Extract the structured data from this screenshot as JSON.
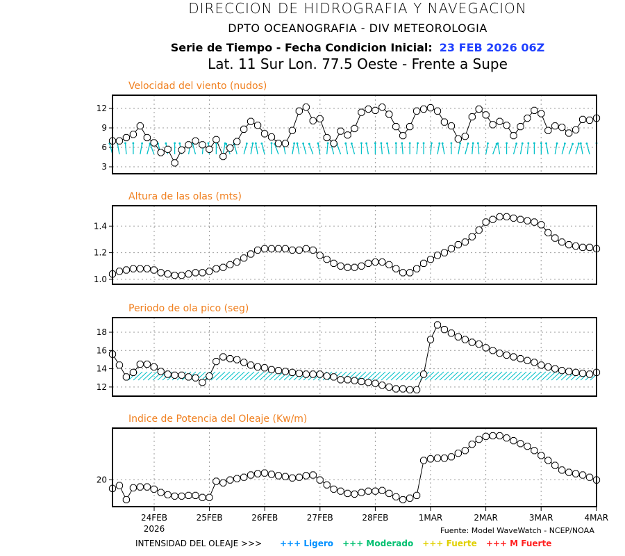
{
  "header": {
    "line1": "DIRECCION DE HIDROGRAFIA Y NAVEGACION",
    "line2": "DPTO OCEANOGRAFIA - DIV METEOROLOGIA",
    "line3_label": "Serie de Tiempo - Fecha Condicion Inicial:",
    "line3_date": "23 FEB 2026 06Z",
    "line4": "Lat. 11 Sur  Lon. 77.5 Oeste - Frente a Supe"
  },
  "colors": {
    "title": "#f08020",
    "date": "#2040ff",
    "arrows": "#00c0c8",
    "ligero": "#0090ff",
    "moderado": "#00c070",
    "fuerte": "#e0d000",
    "mfuerte": "#ff2020"
  },
  "footer": {
    "source": "Fuente: Model WaveWatch - NCEP/NOAA",
    "intensity_label": "INTENSIDAD DEL OLEAJE >>>",
    "legend": [
      {
        "label": "+++ Ligero",
        "color": "#0090ff"
      },
      {
        "label": "+++ Moderado",
        "color": "#00c070"
      },
      {
        "label": "+++ Fuerte",
        "color": "#e0d000"
      },
      {
        "label": "+++ M Fuerte",
        "color": "#ff2020"
      }
    ]
  },
  "chart_data": [
    {
      "type": "line",
      "title": "Velocidad del viento (nudos)",
      "ylim": [
        1.93,
        14.04
      ],
      "yticks": [
        3,
        6,
        9,
        12
      ],
      "x_start": "23FEB 06Z",
      "x_step_hours": 3,
      "xticks": [
        "24FEB",
        "25FEB",
        "26FEB",
        "27FEB",
        "28FEB",
        "1MAR",
        "2MAR",
        "3MAR",
        "4MAR"
      ],
      "xtick_sub": "2026",
      "values": [
        7.0,
        7.0,
        7.5,
        8.0,
        9.3,
        7.5,
        6.7,
        5.2,
        5.7,
        3.6,
        5.6,
        6.4,
        7.0,
        6.4,
        5.7,
        7.2,
        4.6,
        5.9,
        6.9,
        8.8,
        10.0,
        9.4,
        8.1,
        7.6,
        6.6,
        6.6,
        8.6,
        11.6,
        12.2,
        10.1,
        10.4,
        7.5,
        6.6,
        8.5,
        7.9,
        8.9,
        11.4,
        11.9,
        11.7,
        12.2,
        11.1,
        9.2,
        7.8,
        9.2,
        11.6,
        11.9,
        12.1,
        11.6,
        9.9,
        9.3,
        7.3,
        7.7,
        10.7,
        11.9,
        11.0,
        9.5,
        10.0,
        9.4,
        7.8,
        9.2,
        10.5,
        11.7,
        11.2,
        8.6,
        9.3,
        9.1,
        8.2,
        8.7,
        10.3,
        10.2,
        10.5
      ],
      "wind_arrow_tilt_deg": [
        -15,
        -10,
        -5,
        0,
        10,
        15,
        -20,
        -15,
        -10,
        0,
        -10,
        10,
        -15,
        5,
        -5,
        0,
        10,
        -20,
        -15,
        15,
        10,
        -10,
        -15,
        0,
        -20,
        -10,
        10,
        -10,
        -15,
        -20,
        -10,
        5,
        -15,
        -20,
        -10,
        -15,
        0,
        -10,
        0,
        -5,
        -10,
        0,
        -5,
        0,
        5,
        0,
        5,
        10,
        -10,
        0,
        10,
        15,
        5,
        -5,
        10,
        20,
        -10,
        0,
        15,
        10,
        5,
        0,
        0,
        -10,
        10,
        15,
        20,
        15,
        -10,
        -15,
        0
      ],
      "gridlines": true
    },
    {
      "type": "line",
      "title": "Altura de las olas (mts)",
      "ylim": [
        0.963,
        1.553
      ],
      "yticks": [
        1.0,
        1.2,
        1.4
      ],
      "values": [
        1.04,
        1.06,
        1.07,
        1.08,
        1.08,
        1.08,
        1.07,
        1.05,
        1.04,
        1.03,
        1.03,
        1.04,
        1.05,
        1.05,
        1.06,
        1.08,
        1.09,
        1.11,
        1.13,
        1.16,
        1.19,
        1.22,
        1.23,
        1.23,
        1.23,
        1.23,
        1.22,
        1.22,
        1.23,
        1.22,
        1.18,
        1.15,
        1.12,
        1.1,
        1.09,
        1.09,
        1.1,
        1.12,
        1.13,
        1.13,
        1.11,
        1.08,
        1.05,
        1.05,
        1.08,
        1.12,
        1.15,
        1.18,
        1.2,
        1.23,
        1.26,
        1.28,
        1.32,
        1.37,
        1.43,
        1.45,
        1.47,
        1.47,
        1.46,
        1.45,
        1.44,
        1.43,
        1.41,
        1.35,
        1.31,
        1.28,
        1.26,
        1.25,
        1.24,
        1.24,
        1.23
      ],
      "gridlines": true
    },
    {
      "type": "line",
      "title": "Periodo de ola pico (seg)",
      "ylim": [
        11.0,
        19.6
      ],
      "yticks": [
        12,
        14,
        16,
        18
      ],
      "values": [
        15.6,
        14.4,
        13.1,
        13.6,
        14.5,
        14.5,
        14.2,
        13.7,
        13.4,
        13.3,
        13.3,
        13.1,
        13.0,
        12.5,
        13.2,
        14.8,
        15.3,
        15.1,
        15.0,
        14.7,
        14.4,
        14.2,
        14.1,
        13.9,
        13.8,
        13.7,
        13.6,
        13.5,
        13.4,
        13.4,
        13.4,
        13.2,
        13.1,
        12.8,
        12.8,
        12.7,
        12.6,
        12.5,
        12.4,
        12.2,
        12.0,
        11.8,
        11.8,
        11.7,
        11.7,
        13.4,
        17.2,
        18.8,
        18.3,
        17.9,
        17.5,
        17.2,
        16.9,
        16.7,
        16.3,
        16.0,
        15.7,
        15.5,
        15.3,
        15.1,
        14.9,
        14.7,
        14.4,
        14.2,
        14.0,
        13.8,
        13.7,
        13.6,
        13.5,
        13.4,
        13.6
      ],
      "gridlines": true
    },
    {
      "type": "line",
      "title": "Indice de Potencia del Oleaje (Kw/m)",
      "ylim": [
        8,
        43
      ],
      "yticks": [
        20
      ],
      "values": [
        16.1,
        17.4,
        11.1,
        16.4,
        16.8,
        16.8,
        15.8,
        14.3,
        13.3,
        12.7,
        12.7,
        13.0,
        13.0,
        12.1,
        12.1,
        19.3,
        18.6,
        19.9,
        20.5,
        21.1,
        22.1,
        22.7,
        23.0,
        22.4,
        21.8,
        21.4,
        20.8,
        21.1,
        21.8,
        22.1,
        19.9,
        17.7,
        15.8,
        14.9,
        13.9,
        13.6,
        14.3,
        14.9,
        14.9,
        15.2,
        13.9,
        12.4,
        11.1,
        11.8,
        13.0,
        28.6,
        29.3,
        29.6,
        29.6,
        30.2,
        31.8,
        33.0,
        35.8,
        38.0,
        39.3,
        39.6,
        39.6,
        38.6,
        37.4,
        36.1,
        34.9,
        33.0,
        30.8,
        28.6,
        26.4,
        24.3,
        23.3,
        22.7,
        22.1,
        21.1,
        19.9
      ],
      "gridlines": true
    }
  ]
}
